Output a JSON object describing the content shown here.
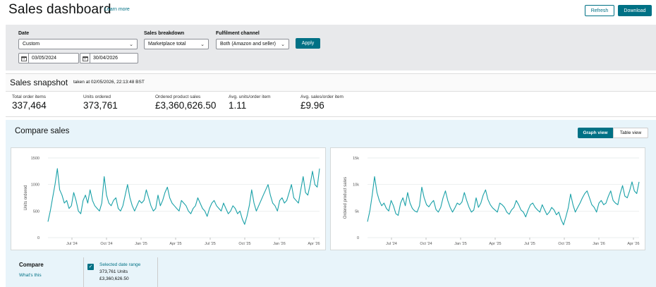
{
  "header": {
    "title": "Sales dashboard",
    "learn_more": "Learn more",
    "refresh_label": "Refresh",
    "download_label": "Download"
  },
  "filters": {
    "date_label": "Date",
    "date_value": "Custom",
    "start_date": "03/05/2024",
    "end_date": "30/04/2026",
    "breakdown_label": "Sales breakdown",
    "breakdown_value": "Marketplace total",
    "channel_label": "Fulfilment channel",
    "channel_value": "Both (Amazon and seller)",
    "apply_label": "Apply"
  },
  "snapshot": {
    "title": "Sales snapshot",
    "taken": "taken at 02/05/2026, 22:13:48 BST",
    "metrics": [
      {
        "label": "Total order items",
        "value": "337,464"
      },
      {
        "label": "Units ordered",
        "value": "373,761"
      },
      {
        "label": "Ordered product sales",
        "value": "£3,360,626.50"
      },
      {
        "label": "Avg. units/order item",
        "value": "1.11"
      },
      {
        "label": "Avg. sales/order item",
        "value": "£9.96"
      }
    ]
  },
  "compare": {
    "title": "Compare sales",
    "graph_view": "Graph view",
    "table_view": "Table view",
    "compare_label": "Compare",
    "whats_this": "What's this",
    "selected_range": "Selected date range",
    "units": "373,761 Units",
    "sales": "£3,360,626.50"
  },
  "colors": {
    "accent": "#007185",
    "series": "#1aa1a8"
  },
  "chart_data": [
    {
      "type": "line",
      "ylabel": "Units ordered",
      "xlabel": "",
      "ylim": [
        0,
        1500
      ],
      "yticks": [
        "0",
        "500",
        "1000",
        "1500"
      ],
      "xticks": [
        "Jul '24",
        "Oct '24",
        "Jan '25",
        "Apr '25",
        "Jul '25",
        "Oct '25",
        "Jan '26",
        "Apr '26"
      ],
      "grid": true,
      "series": [
        {
          "values": [
            300,
            500,
            750,
            1000,
            1300,
            900,
            800,
            650,
            700,
            550,
            600,
            850,
            700,
            500,
            450,
            700,
            800,
            650,
            900,
            700,
            600,
            550,
            500,
            650,
            1150,
            800,
            650,
            600,
            700,
            750,
            550,
            500,
            600,
            800,
            1000,
            750,
            600,
            500,
            600,
            700,
            650,
            700,
            900,
            750,
            600,
            500,
            550,
            800,
            600,
            700,
            850,
            950,
            750,
            650,
            600,
            550,
            500,
            700,
            650,
            600,
            500,
            450,
            550,
            600,
            750,
            650,
            550,
            500,
            400,
            550,
            650,
            700,
            600,
            550,
            500,
            650,
            550,
            450,
            500,
            600,
            550,
            450,
            500,
            350,
            250,
            400,
            600,
            900,
            650,
            500,
            600,
            700,
            800,
            900,
            1000,
            800,
            650,
            600,
            500,
            700,
            750,
            650,
            700,
            850,
            1000,
            750,
            700,
            650,
            900,
            1150,
            850,
            800,
            1000,
            1250,
            1000,
            950,
            1300
          ]
        }
      ]
    },
    {
      "type": "line",
      "ylabel": "Ordered product sales",
      "xlabel": "",
      "ylim": [
        0,
        15000
      ],
      "yticks": [
        "0",
        "5k",
        "10k",
        "15k"
      ],
      "xticks": [
        "Jul '24",
        "Oct '24",
        "Jan '25",
        "Apr '25",
        "Jul '25",
        "Oct '25",
        "Jan '26",
        "Apr '26"
      ],
      "grid": true,
      "series": [
        {
          "values": [
            3000,
            5000,
            8000,
            11500,
            8500,
            7000,
            6000,
            6500,
            5500,
            5000,
            7000,
            6000,
            4500,
            4200,
            6500,
            7500,
            6000,
            8500,
            6500,
            5500,
            5000,
            4800,
            6000,
            9500,
            7500,
            6200,
            5800,
            6500,
            7000,
            5300,
            4800,
            5700,
            7500,
            8800,
            7000,
            5700,
            4800,
            5600,
            6500,
            6200,
            6700,
            8500,
            7000,
            5700,
            4800,
            5200,
            7500,
            5700,
            6500,
            8000,
            9000,
            7200,
            6200,
            5600,
            5200,
            4800,
            6500,
            6200,
            5700,
            4800,
            4400,
            5200,
            5700,
            7000,
            6200,
            5200,
            4800,
            3900,
            5200,
            6200,
            6500,
            5700,
            5200,
            4800,
            6200,
            5200,
            4300,
            4800,
            5700,
            5200,
            4300,
            4800,
            3400,
            2400,
            3900,
            5600,
            8200,
            6200,
            4800,
            5700,
            6500,
            7500,
            8300,
            8800,
            7500,
            6200,
            5700,
            4800,
            6500,
            7000,
            6200,
            6500,
            7800,
            8800,
            7000,
            6500,
            6200,
            8300,
            9800,
            7800,
            7500,
            8800,
            10500,
            8800,
            8300,
            10500
          ]
        }
      ]
    }
  ]
}
